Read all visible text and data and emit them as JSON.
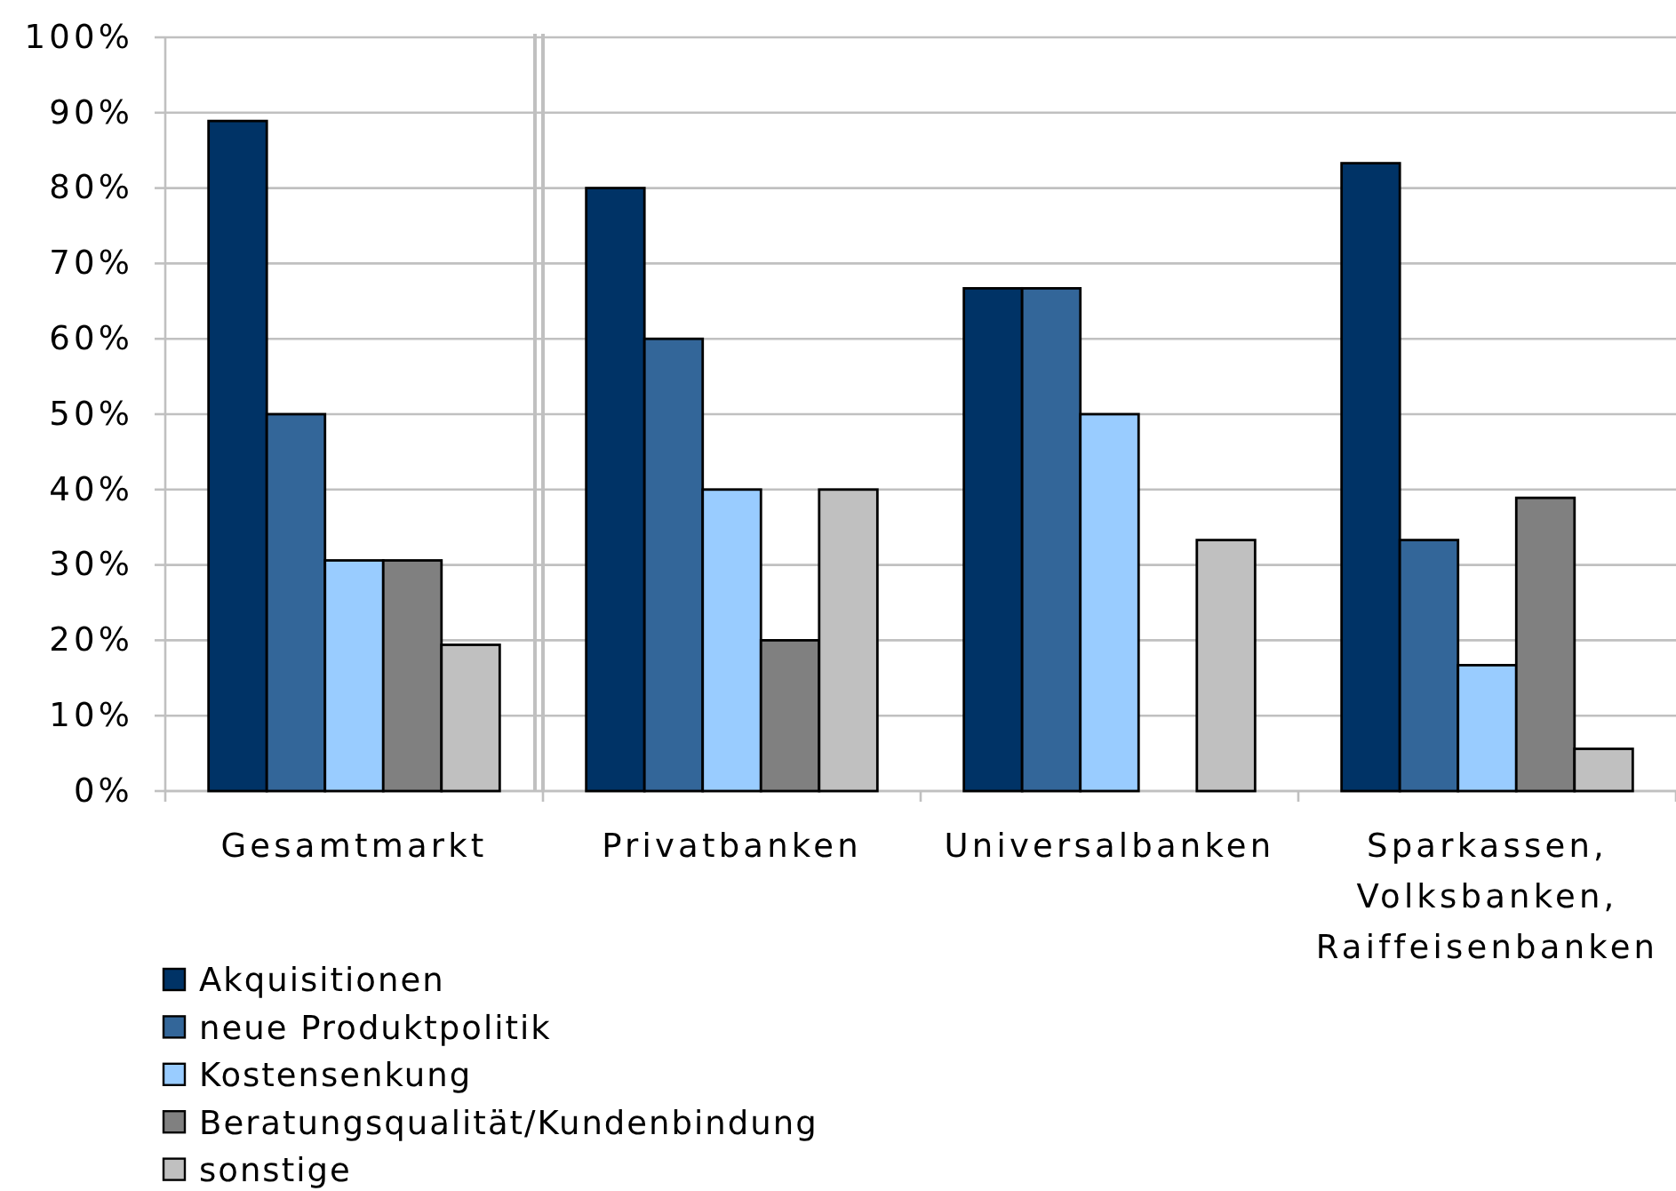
{
  "chart_data": {
    "type": "bar",
    "categories": [
      "Gesamtmarkt",
      "Privatbanken",
      "Universalbanken",
      "Sparkassen, Volksbanken, Raiffeisenbanken"
    ],
    "series": [
      {
        "name": "Akquisitionen",
        "color": "#003366",
        "values": [
          88.9,
          80,
          66.7,
          83.3
        ]
      },
      {
        "name": "neue Produktpolitik",
        "color": "#336699",
        "values": [
          50,
          60,
          66.7,
          33.3
        ]
      },
      {
        "name": "Kostensenkung",
        "color": "#99ccff",
        "values": [
          30.6,
          40,
          50,
          16.7
        ]
      },
      {
        "name": "Beratungsqualität/Kundenbindung",
        "color": "#808080",
        "values": [
          30.6,
          20,
          0,
          38.9
        ]
      },
      {
        "name": "sonstige",
        "color": "#c0c0c0",
        "values": [
          19.4,
          40,
          33.3,
          5.6
        ]
      }
    ],
    "ylim": [
      0,
      100
    ],
    "yticks": [
      {
        "value": 0,
        "label": "0%"
      },
      {
        "value": 10,
        "label": "10%"
      },
      {
        "value": 20,
        "label": "20%"
      },
      {
        "value": 30,
        "label": "30%"
      },
      {
        "value": 40,
        "label": "40%"
      },
      {
        "value": 50,
        "label": "50%"
      },
      {
        "value": 60,
        "label": "60%"
      },
      {
        "value": 70,
        "label": "70%"
      },
      {
        "value": 80,
        "label": "80%"
      },
      {
        "value": 90,
        "label": "90%"
      },
      {
        "value": 100,
        "label": "100%"
      }
    ],
    "grid": "y",
    "legend": "bottom left"
  }
}
